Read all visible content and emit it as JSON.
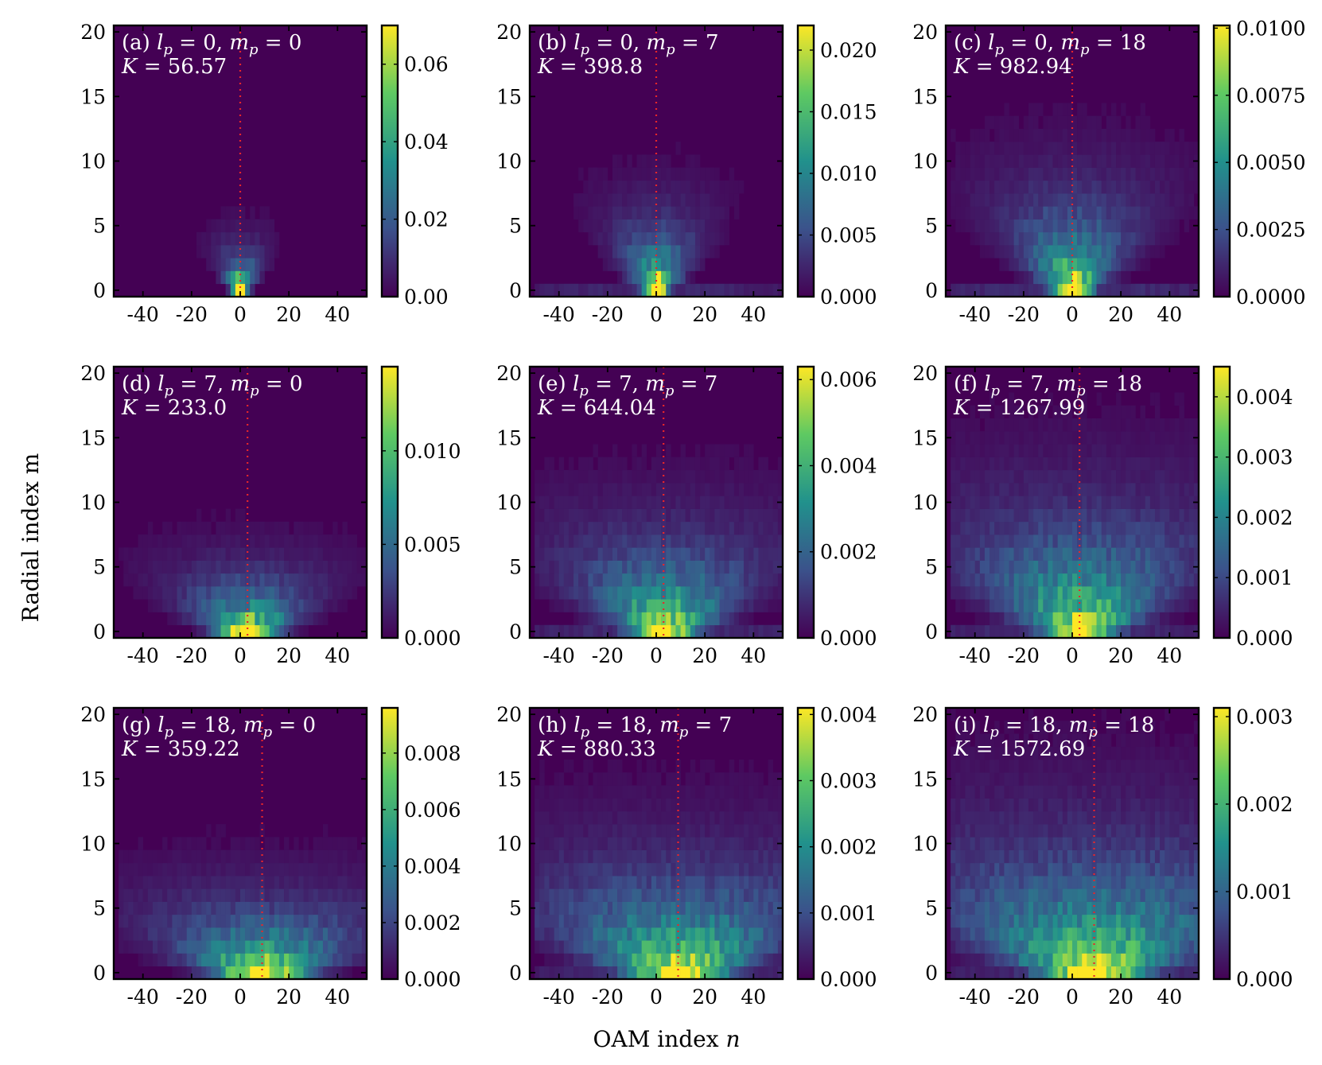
{
  "chart_data": {
    "type": "heatmap",
    "xlabel_prefix": "OAM index ",
    "xlabel_var": "n",
    "ylabel": "Radial index m",
    "xlim": [
      -52,
      52
    ],
    "ylim": [
      -0.5,
      20.5
    ],
    "x_ticks": [
      -40,
      -20,
      0,
      20,
      40
    ],
    "x_tick_labels": [
      "-40",
      "-20",
      "0",
      "20",
      "40"
    ],
    "y_ticks": [
      0,
      5,
      10,
      15,
      20
    ],
    "y_tick_labels": [
      "0",
      "5",
      "10",
      "15",
      "20"
    ],
    "colormap": "viridis",
    "colors": [
      "#440154",
      "#3b528b",
      "#21918c",
      "#5ec962",
      "#fde725"
    ],
    "marker_line_color": "#e8262a",
    "panels": [
      {
        "tag": "(a)",
        "lp": 0,
        "mp": 0,
        "K": "56.57",
        "center_n": 0,
        "spread_n": 2.5,
        "spread_m": 1.8,
        "row_floor": 0.0,
        "vmax": 0.07,
        "cbar_ticks": [
          0,
          0.02,
          0.04,
          0.06
        ],
        "cbar_labels": [
          "0.00",
          "0.02",
          "0.04",
          "0.06"
        ]
      },
      {
        "tag": "(b)",
        "lp": 0,
        "mp": 7,
        "K": "398.8",
        "center_n": 0,
        "spread_n": 4.0,
        "spread_m": 3.0,
        "row_floor": 0.25,
        "vmax": 0.022,
        "cbar_ticks": [
          0,
          0.005,
          0.01,
          0.015,
          0.02
        ],
        "cbar_labels": [
          "0.000",
          "0.005",
          "0.010",
          "0.015",
          "0.020"
        ]
      },
      {
        "tag": "(c)",
        "lp": 0,
        "mp": 18,
        "K": "982.94",
        "center_n": 0,
        "spread_n": 6.0,
        "spread_m": 4.0,
        "row_floor": 0.3,
        "vmax": 0.0101,
        "cbar_ticks": [
          0,
          0.0025,
          0.005,
          0.0075,
          0.01
        ],
        "cbar_labels": [
          "0.0000",
          "0.0025",
          "0.0050",
          "0.0075",
          "0.0100"
        ]
      },
      {
        "tag": "(d)",
        "lp": 7,
        "mp": 0,
        "K": "233.0",
        "center_n": 3,
        "spread_n": 9.0,
        "spread_m": 2.5,
        "row_floor": 0.0,
        "vmax": 0.0145,
        "cbar_ticks": [
          0,
          0.005,
          0.01
        ],
        "cbar_labels": [
          "0.000",
          "0.005",
          "0.010"
        ]
      },
      {
        "tag": "(e)",
        "lp": 7,
        "mp": 7,
        "K": "644.04",
        "center_n": 3,
        "spread_n": 10.0,
        "spread_m": 4.0,
        "row_floor": 0.3,
        "vmax": 0.0063,
        "cbar_ticks": [
          0,
          0.002,
          0.004,
          0.006
        ],
        "cbar_labels": [
          "0.000",
          "0.002",
          "0.004",
          "0.006"
        ]
      },
      {
        "tag": "(f)",
        "lp": 7,
        "mp": 18,
        "K": "1267.99",
        "center_n": 3,
        "spread_n": 11.0,
        "spread_m": 5.0,
        "row_floor": 0.3,
        "vmax": 0.0045,
        "cbar_ticks": [
          0,
          0.001,
          0.002,
          0.003,
          0.004
        ],
        "cbar_labels": [
          "0.000",
          "0.001",
          "0.002",
          "0.003",
          "0.004"
        ]
      },
      {
        "tag": "(g)",
        "lp": 18,
        "mp": 0,
        "K": "359.22",
        "center_n": 9,
        "spread_n": 14.0,
        "spread_m": 3.0,
        "row_floor": 0.0,
        "vmax": 0.0096,
        "cbar_ticks": [
          0,
          0.002,
          0.004,
          0.006,
          0.008
        ],
        "cbar_labels": [
          "0.000",
          "0.002",
          "0.004",
          "0.006",
          "0.008"
        ]
      },
      {
        "tag": "(h)",
        "lp": 18,
        "mp": 7,
        "K": "880.33",
        "center_n": 9,
        "spread_n": 15.0,
        "spread_m": 4.5,
        "row_floor": 0.3,
        "vmax": 0.0041,
        "cbar_ticks": [
          0,
          0.001,
          0.002,
          0.003,
          0.004
        ],
        "cbar_labels": [
          "0.000",
          "0.001",
          "0.002",
          "0.003",
          "0.004"
        ]
      },
      {
        "tag": "(i)",
        "lp": 18,
        "mp": 18,
        "K": "1572.69",
        "center_n": 9,
        "spread_n": 16.0,
        "spread_m": 5.5,
        "row_floor": 0.3,
        "vmax": 0.0031,
        "cbar_ticks": [
          0,
          0.001,
          0.002,
          0.003
        ],
        "cbar_labels": [
          "0.000",
          "0.001",
          "0.002",
          "0.003"
        ]
      }
    ]
  }
}
